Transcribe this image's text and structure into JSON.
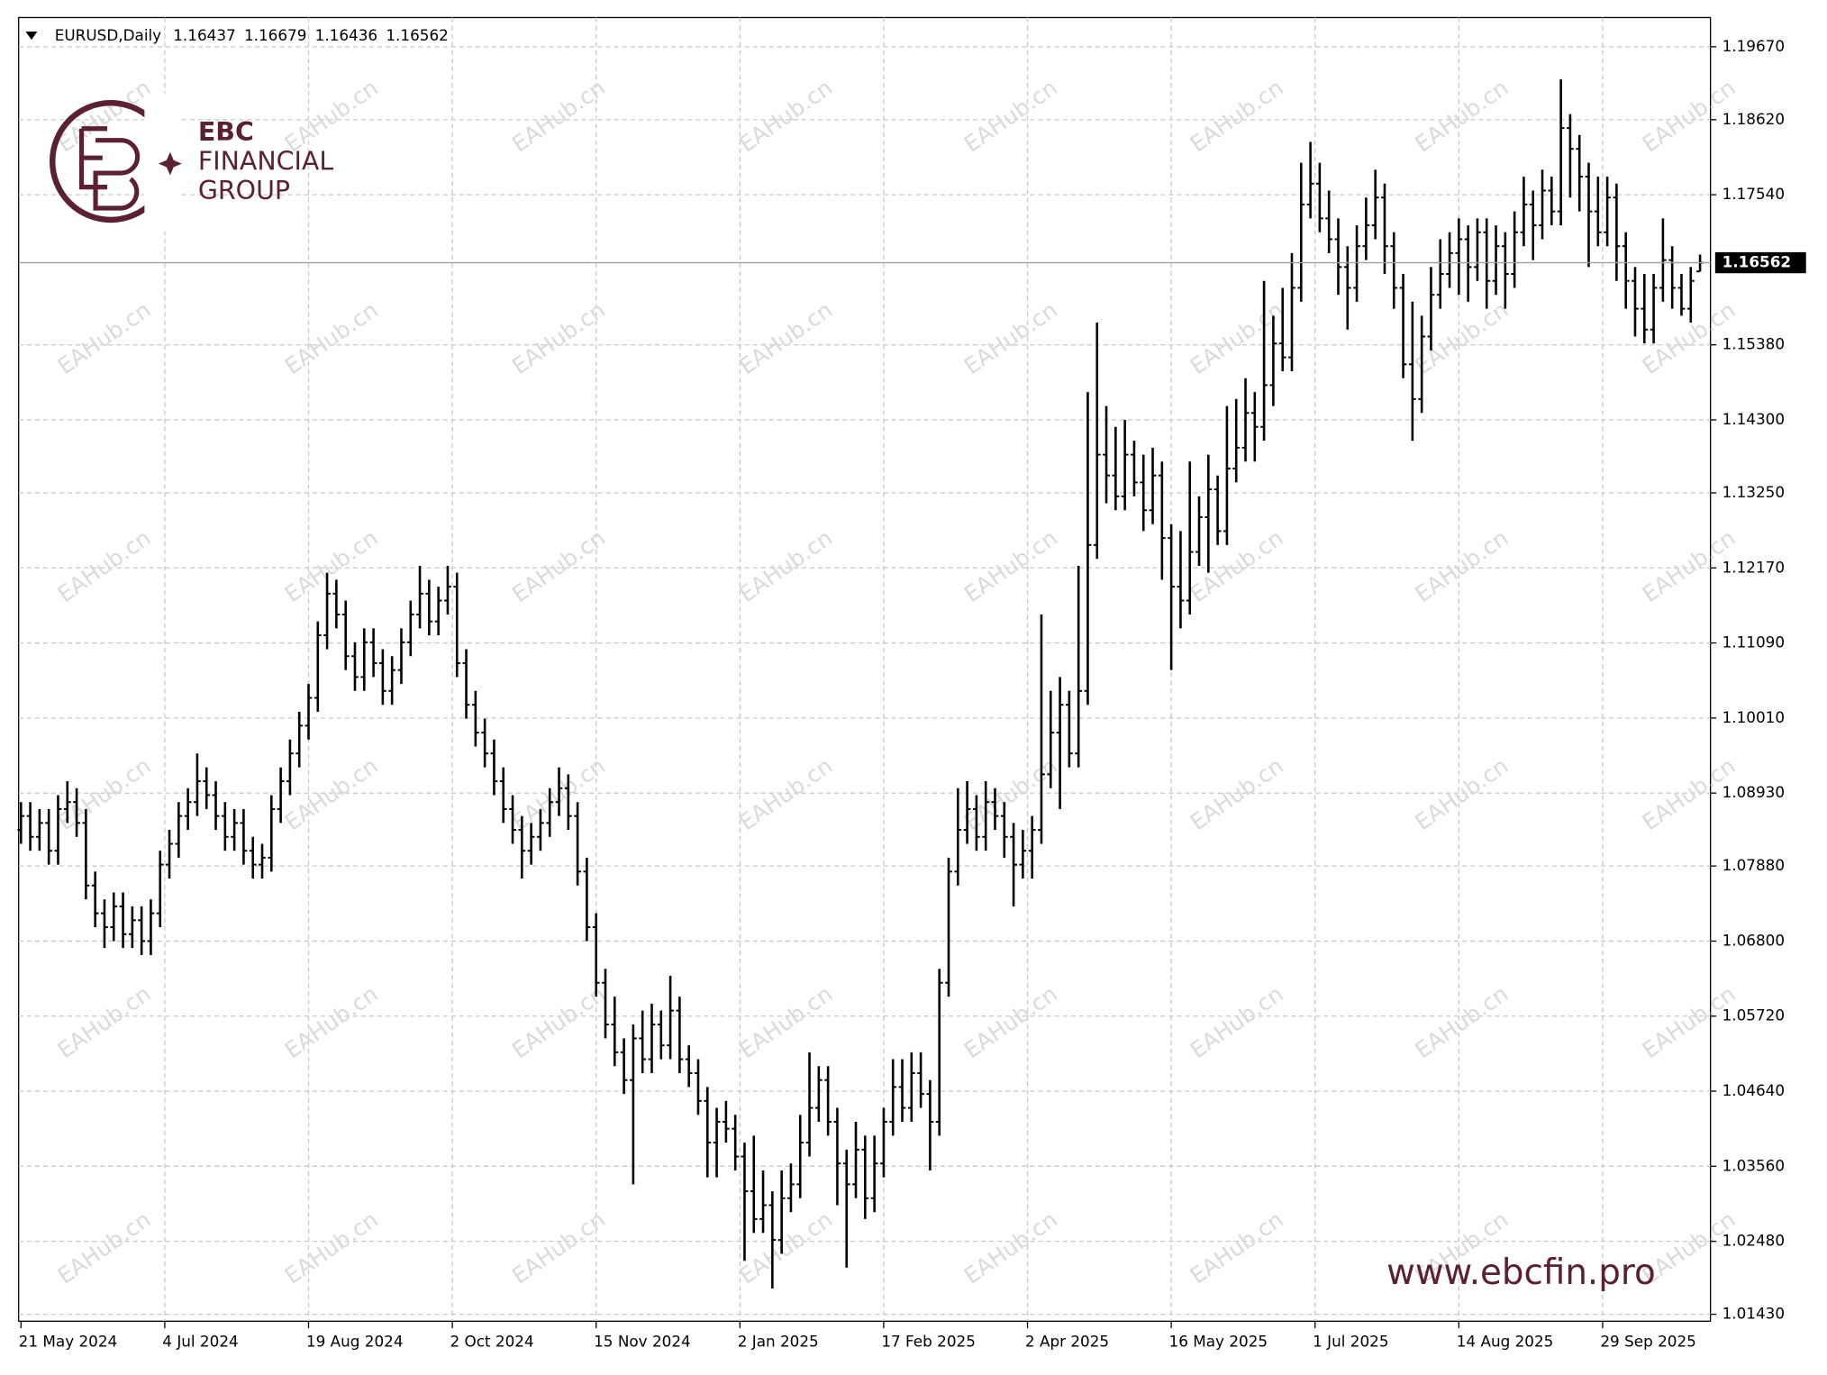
{
  "header": {
    "symbol": "EURUSD,Daily"
  },
  "logo": {
    "name": "EBC",
    "line1": "FINANCIAL",
    "line2": "GROUP"
  },
  "website": "www.ebcfin.pro",
  "watermark": "EAHub.cn",
  "chart_data": {
    "type": "ohlc",
    "color": "#000000",
    "grid": true,
    "xlim": [
      0,
      182
    ],
    "ylim": [
      1.0133,
      1.2009
    ],
    "xticks": [
      {
        "value": 0,
        "label": "21 May 2024"
      },
      {
        "value": 15.5,
        "label": "4 Jul 2024"
      },
      {
        "value": 31,
        "label": "19 Aug 2024"
      },
      {
        "value": 46.5,
        "label": "2 Oct 2024"
      },
      {
        "value": 62,
        "label": "15 Nov 2024"
      },
      {
        "value": 77.5,
        "label": "2 Jan 2025"
      },
      {
        "value": 93,
        "label": "17 Feb 2025"
      },
      {
        "value": 108.5,
        "label": "2 Apr 2025"
      },
      {
        "value": 124,
        "label": "16 May 2025"
      },
      {
        "value": 139.5,
        "label": "1 Jul 2025"
      },
      {
        "value": 155,
        "label": "14 Aug 2025"
      },
      {
        "value": 170.5,
        "label": "29 Sep 2025"
      }
    ],
    "yticks": [
      {
        "value": 1.0143,
        "label": "1.01430"
      },
      {
        "value": 1.0248,
        "label": "1.02480"
      },
      {
        "value": 1.0356,
        "label": "1.03560"
      },
      {
        "value": 1.0464,
        "label": "1.04640"
      },
      {
        "value": 1.0572,
        "label": "1.05720"
      },
      {
        "value": 1.068,
        "label": "1.06800"
      },
      {
        "value": 1.0788,
        "label": "1.07880"
      },
      {
        "value": 1.0893,
        "label": "1.08930"
      },
      {
        "value": 1.1001,
        "label": "1.10010"
      },
      {
        "value": 1.1109,
        "label": "1.11090"
      },
      {
        "value": 1.1217,
        "label": "1.12170"
      },
      {
        "value": 1.1325,
        "label": "1.13250"
      },
      {
        "value": 1.143,
        "label": "1.14300"
      },
      {
        "value": 1.1538,
        "label": "1.15380"
      },
      {
        "value": 1.1754,
        "label": "1.17540"
      },
      {
        "value": 1.1862,
        "label": "1.18620"
      },
      {
        "value": 1.1967,
        "label": "1.19670"
      }
    ],
    "ohlc": [
      [
        1.084,
        1.088,
        1.082,
        1.086
      ],
      [
        1.086,
        1.088,
        1.081,
        1.083
      ],
      [
        1.083,
        1.087,
        1.081,
        1.085
      ],
      [
        1.085,
        1.087,
        1.079,
        1.081
      ],
      [
        1.081,
        1.089,
        1.079,
        1.087
      ],
      [
        1.087,
        1.091,
        1.085,
        1.088
      ],
      [
        1.088,
        1.09,
        1.083,
        1.085
      ],
      [
        1.085,
        1.087,
        1.074,
        1.076
      ],
      [
        1.076,
        1.078,
        1.07,
        1.072
      ],
      [
        1.072,
        1.074,
        1.067,
        1.07
      ],
      [
        1.07,
        1.075,
        1.068,
        1.073
      ],
      [
        1.073,
        1.075,
        1.067,
        1.069
      ],
      [
        1.069,
        1.073,
        1.067,
        1.071
      ],
      [
        1.071,
        1.073,
        1.066,
        1.068
      ],
      [
        1.068,
        1.074,
        1.066,
        1.072
      ],
      [
        1.072,
        1.081,
        1.07,
        1.079
      ],
      [
        1.079,
        1.084,
        1.077,
        1.082
      ],
      [
        1.082,
        1.088,
        1.08,
        1.086
      ],
      [
        1.086,
        1.09,
        1.084,
        1.088
      ],
      [
        1.088,
        1.095,
        1.086,
        1.091
      ],
      [
        1.091,
        1.093,
        1.087,
        1.089
      ],
      [
        1.089,
        1.091,
        1.084,
        1.086
      ],
      [
        1.086,
        1.088,
        1.081,
        1.083
      ],
      [
        1.083,
        1.087,
        1.081,
        1.085
      ],
      [
        1.085,
        1.087,
        1.079,
        1.081
      ],
      [
        1.081,
        1.083,
        1.077,
        1.079
      ],
      [
        1.079,
        1.082,
        1.077,
        1.08
      ],
      [
        1.08,
        1.089,
        1.078,
        1.087
      ],
      [
        1.087,
        1.093,
        1.085,
        1.091
      ],
      [
        1.091,
        1.097,
        1.089,
        1.095
      ],
      [
        1.095,
        1.101,
        1.093,
        1.099
      ],
      [
        1.099,
        1.105,
        1.097,
        1.103
      ],
      [
        1.103,
        1.114,
        1.101,
        1.112
      ],
      [
        1.112,
        1.121,
        1.11,
        1.118
      ],
      [
        1.118,
        1.12,
        1.113,
        1.115
      ],
      [
        1.115,
        1.117,
        1.107,
        1.109
      ],
      [
        1.109,
        1.111,
        1.104,
        1.106
      ],
      [
        1.106,
        1.113,
        1.104,
        1.111
      ],
      [
        1.111,
        1.113,
        1.106,
        1.108
      ],
      [
        1.108,
        1.11,
        1.102,
        1.104
      ],
      [
        1.104,
        1.109,
        1.102,
        1.107
      ],
      [
        1.107,
        1.113,
        1.105,
        1.111
      ],
      [
        1.111,
        1.117,
        1.109,
        1.115
      ],
      [
        1.115,
        1.122,
        1.113,
        1.118
      ],
      [
        1.118,
        1.12,
        1.112,
        1.114
      ],
      [
        1.114,
        1.119,
        1.112,
        1.117
      ],
      [
        1.117,
        1.122,
        1.115,
        1.119
      ],
      [
        1.119,
        1.121,
        1.106,
        1.108
      ],
      [
        1.108,
        1.11,
        1.1,
        1.102
      ],
      [
        1.102,
        1.104,
        1.096,
        1.098
      ],
      [
        1.098,
        1.1,
        1.093,
        1.095
      ],
      [
        1.095,
        1.097,
        1.089,
        1.091
      ],
      [
        1.091,
        1.093,
        1.085,
        1.087
      ],
      [
        1.087,
        1.089,
        1.082,
        1.084
      ],
      [
        1.084,
        1.086,
        1.077,
        1.081
      ],
      [
        1.081,
        1.085,
        1.079,
        1.083
      ],
      [
        1.083,
        1.087,
        1.081,
        1.085
      ],
      [
        1.085,
        1.09,
        1.083,
        1.088
      ],
      [
        1.088,
        1.093,
        1.086,
        1.09
      ],
      [
        1.09,
        1.092,
        1.084,
        1.086
      ],
      [
        1.086,
        1.088,
        1.076,
        1.078
      ],
      [
        1.078,
        1.08,
        1.068,
        1.07
      ],
      [
        1.07,
        1.072,
        1.06,
        1.062
      ],
      [
        1.062,
        1.064,
        1.054,
        1.056
      ],
      [
        1.056,
        1.06,
        1.05,
        1.052
      ],
      [
        1.052,
        1.054,
        1.046,
        1.048
      ],
      [
        1.048,
        1.056,
        1.033,
        1.054
      ],
      [
        1.054,
        1.058,
        1.049,
        1.051
      ],
      [
        1.051,
        1.059,
        1.049,
        1.056
      ],
      [
        1.056,
        1.058,
        1.051,
        1.053
      ],
      [
        1.053,
        1.063,
        1.051,
        1.058
      ],
      [
        1.058,
        1.06,
        1.049,
        1.051
      ],
      [
        1.051,
        1.053,
        1.047,
        1.049
      ],
      [
        1.049,
        1.051,
        1.043,
        1.045
      ],
      [
        1.045,
        1.047,
        1.034,
        1.039
      ],
      [
        1.039,
        1.044,
        1.034,
        1.042
      ],
      [
        1.042,
        1.045,
        1.039,
        1.041
      ],
      [
        1.041,
        1.043,
        1.035,
        1.037
      ],
      [
        1.037,
        1.039,
        1.022,
        1.032
      ],
      [
        1.032,
        1.04,
        1.026,
        1.028
      ],
      [
        1.028,
        1.035,
        1.026,
        1.03
      ],
      [
        1.03,
        1.032,
        1.018,
        1.025
      ],
      [
        1.025,
        1.035,
        1.023,
        1.031
      ],
      [
        1.031,
        1.036,
        1.029,
        1.033
      ],
      [
        1.033,
        1.043,
        1.031,
        1.039
      ],
      [
        1.039,
        1.052,
        1.037,
        1.044
      ],
      [
        1.044,
        1.05,
        1.042,
        1.048
      ],
      [
        1.048,
        1.05,
        1.04,
        1.042
      ],
      [
        1.042,
        1.044,
        1.03,
        1.036
      ],
      [
        1.036,
        1.038,
        1.021,
        1.033
      ],
      [
        1.033,
        1.042,
        1.031,
        1.038
      ],
      [
        1.038,
        1.04,
        1.028,
        1.031
      ],
      [
        1.031,
        1.04,
        1.029,
        1.036
      ],
      [
        1.036,
        1.044,
        1.034,
        1.042
      ],
      [
        1.042,
        1.051,
        1.04,
        1.047
      ],
      [
        1.047,
        1.051,
        1.042,
        1.044
      ],
      [
        1.044,
        1.052,
        1.042,
        1.049
      ],
      [
        1.049,
        1.052,
        1.044,
        1.046
      ],
      [
        1.046,
        1.048,
        1.035,
        1.042
      ],
      [
        1.042,
        1.064,
        1.04,
        1.062
      ],
      [
        1.062,
        1.08,
        1.06,
        1.078
      ],
      [
        1.078,
        1.09,
        1.076,
        1.084
      ],
      [
        1.084,
        1.091,
        1.082,
        1.087
      ],
      [
        1.087,
        1.089,
        1.081,
        1.083
      ],
      [
        1.083,
        1.091,
        1.081,
        1.088
      ],
      [
        1.088,
        1.09,
        1.084,
        1.086
      ],
      [
        1.086,
        1.088,
        1.08,
        1.083
      ],
      [
        1.083,
        1.085,
        1.073,
        1.079
      ],
      [
        1.079,
        1.084,
        1.077,
        1.081
      ],
      [
        1.081,
        1.086,
        1.077,
        1.084
      ],
      [
        1.084,
        1.115,
        1.082,
        1.092
      ],
      [
        1.092,
        1.104,
        1.09,
        1.098
      ],
      [
        1.098,
        1.106,
        1.087,
        1.102
      ],
      [
        1.102,
        1.104,
        1.093,
        1.095
      ],
      [
        1.095,
        1.122,
        1.093,
        1.104
      ],
      [
        1.104,
        1.147,
        1.102,
        1.125
      ],
      [
        1.125,
        1.157,
        1.123,
        1.138
      ],
      [
        1.138,
        1.145,
        1.131,
        1.135
      ],
      [
        1.135,
        1.142,
        1.13,
        1.132
      ],
      [
        1.132,
        1.143,
        1.13,
        1.138
      ],
      [
        1.138,
        1.14,
        1.132,
        1.134
      ],
      [
        1.134,
        1.138,
        1.127,
        1.13
      ],
      [
        1.13,
        1.139,
        1.128,
        1.135
      ],
      [
        1.135,
        1.137,
        1.12,
        1.126
      ],
      [
        1.126,
        1.128,
        1.107,
        1.119
      ],
      [
        1.119,
        1.127,
        1.113,
        1.117
      ],
      [
        1.117,
        1.137,
        1.115,
        1.124
      ],
      [
        1.124,
        1.132,
        1.122,
        1.129
      ],
      [
        1.129,
        1.138,
        1.121,
        1.133
      ],
      [
        1.133,
        1.135,
        1.125,
        1.127
      ],
      [
        1.127,
        1.145,
        1.125,
        1.136
      ],
      [
        1.136,
        1.146,
        1.134,
        1.139
      ],
      [
        1.139,
        1.149,
        1.137,
        1.144
      ],
      [
        1.144,
        1.147,
        1.137,
        1.142
      ],
      [
        1.142,
        1.163,
        1.14,
        1.148
      ],
      [
        1.148,
        1.158,
        1.145,
        1.154
      ],
      [
        1.154,
        1.162,
        1.15,
        1.152
      ],
      [
        1.152,
        1.167,
        1.15,
        1.162
      ],
      [
        1.162,
        1.18,
        1.16,
        1.174
      ],
      [
        1.174,
        1.183,
        1.172,
        1.177
      ],
      [
        1.177,
        1.18,
        1.17,
        1.172
      ],
      [
        1.172,
        1.176,
        1.167,
        1.169
      ],
      [
        1.169,
        1.172,
        1.161,
        1.165
      ],
      [
        1.165,
        1.168,
        1.156,
        1.162
      ],
      [
        1.162,
        1.171,
        1.16,
        1.168
      ],
      [
        1.168,
        1.175,
        1.166,
        1.171
      ],
      [
        1.171,
        1.179,
        1.169,
        1.175
      ],
      [
        1.175,
        1.177,
        1.164,
        1.168
      ],
      [
        1.168,
        1.17,
        1.159,
        1.162
      ],
      [
        1.162,
        1.164,
        1.149,
        1.151
      ],
      [
        1.151,
        1.16,
        1.14,
        1.146
      ],
      [
        1.146,
        1.158,
        1.144,
        1.155
      ],
      [
        1.155,
        1.165,
        1.153,
        1.161
      ],
      [
        1.161,
        1.169,
        1.159,
        1.164
      ],
      [
        1.164,
        1.17,
        1.162,
        1.167
      ],
      [
        1.167,
        1.172,
        1.161,
        1.169
      ],
      [
        1.169,
        1.171,
        1.16,
        1.165
      ],
      [
        1.165,
        1.172,
        1.163,
        1.17
      ],
      [
        1.17,
        1.172,
        1.159,
        1.163
      ],
      [
        1.163,
        1.171,
        1.161,
        1.168
      ],
      [
        1.168,
        1.17,
        1.159,
        1.164
      ],
      [
        1.164,
        1.173,
        1.162,
        1.17
      ],
      [
        1.17,
        1.178,
        1.168,
        1.174
      ],
      [
        1.174,
        1.176,
        1.166,
        1.171
      ],
      [
        1.171,
        1.179,
        1.169,
        1.176
      ],
      [
        1.176,
        1.178,
        1.171,
        1.173
      ],
      [
        1.173,
        1.192,
        1.171,
        1.185
      ],
      [
        1.185,
        1.187,
        1.175,
        1.182
      ],
      [
        1.182,
        1.184,
        1.173,
        1.178
      ],
      [
        1.178,
        1.18,
        1.165,
        1.173
      ],
      [
        1.173,
        1.178,
        1.168,
        1.17
      ],
      [
        1.17,
        1.178,
        1.168,
        1.175
      ],
      [
        1.175,
        1.177,
        1.163,
        1.168
      ],
      [
        1.168,
        1.17,
        1.159,
        1.163
      ],
      [
        1.163,
        1.165,
        1.155,
        1.159
      ],
      [
        1.159,
        1.164,
        1.154,
        1.156
      ],
      [
        1.156,
        1.164,
        1.154,
        1.162
      ],
      [
        1.162,
        1.172,
        1.16,
        1.166
      ],
      [
        1.166,
        1.168,
        1.159,
        1.162
      ],
      [
        1.162,
        1.164,
        1.158,
        1.159
      ],
      [
        1.159,
        1.165,
        1.157,
        1.163
      ],
      [
        1.16437,
        1.16679,
        1.16436,
        1.16562
      ]
    ]
  }
}
